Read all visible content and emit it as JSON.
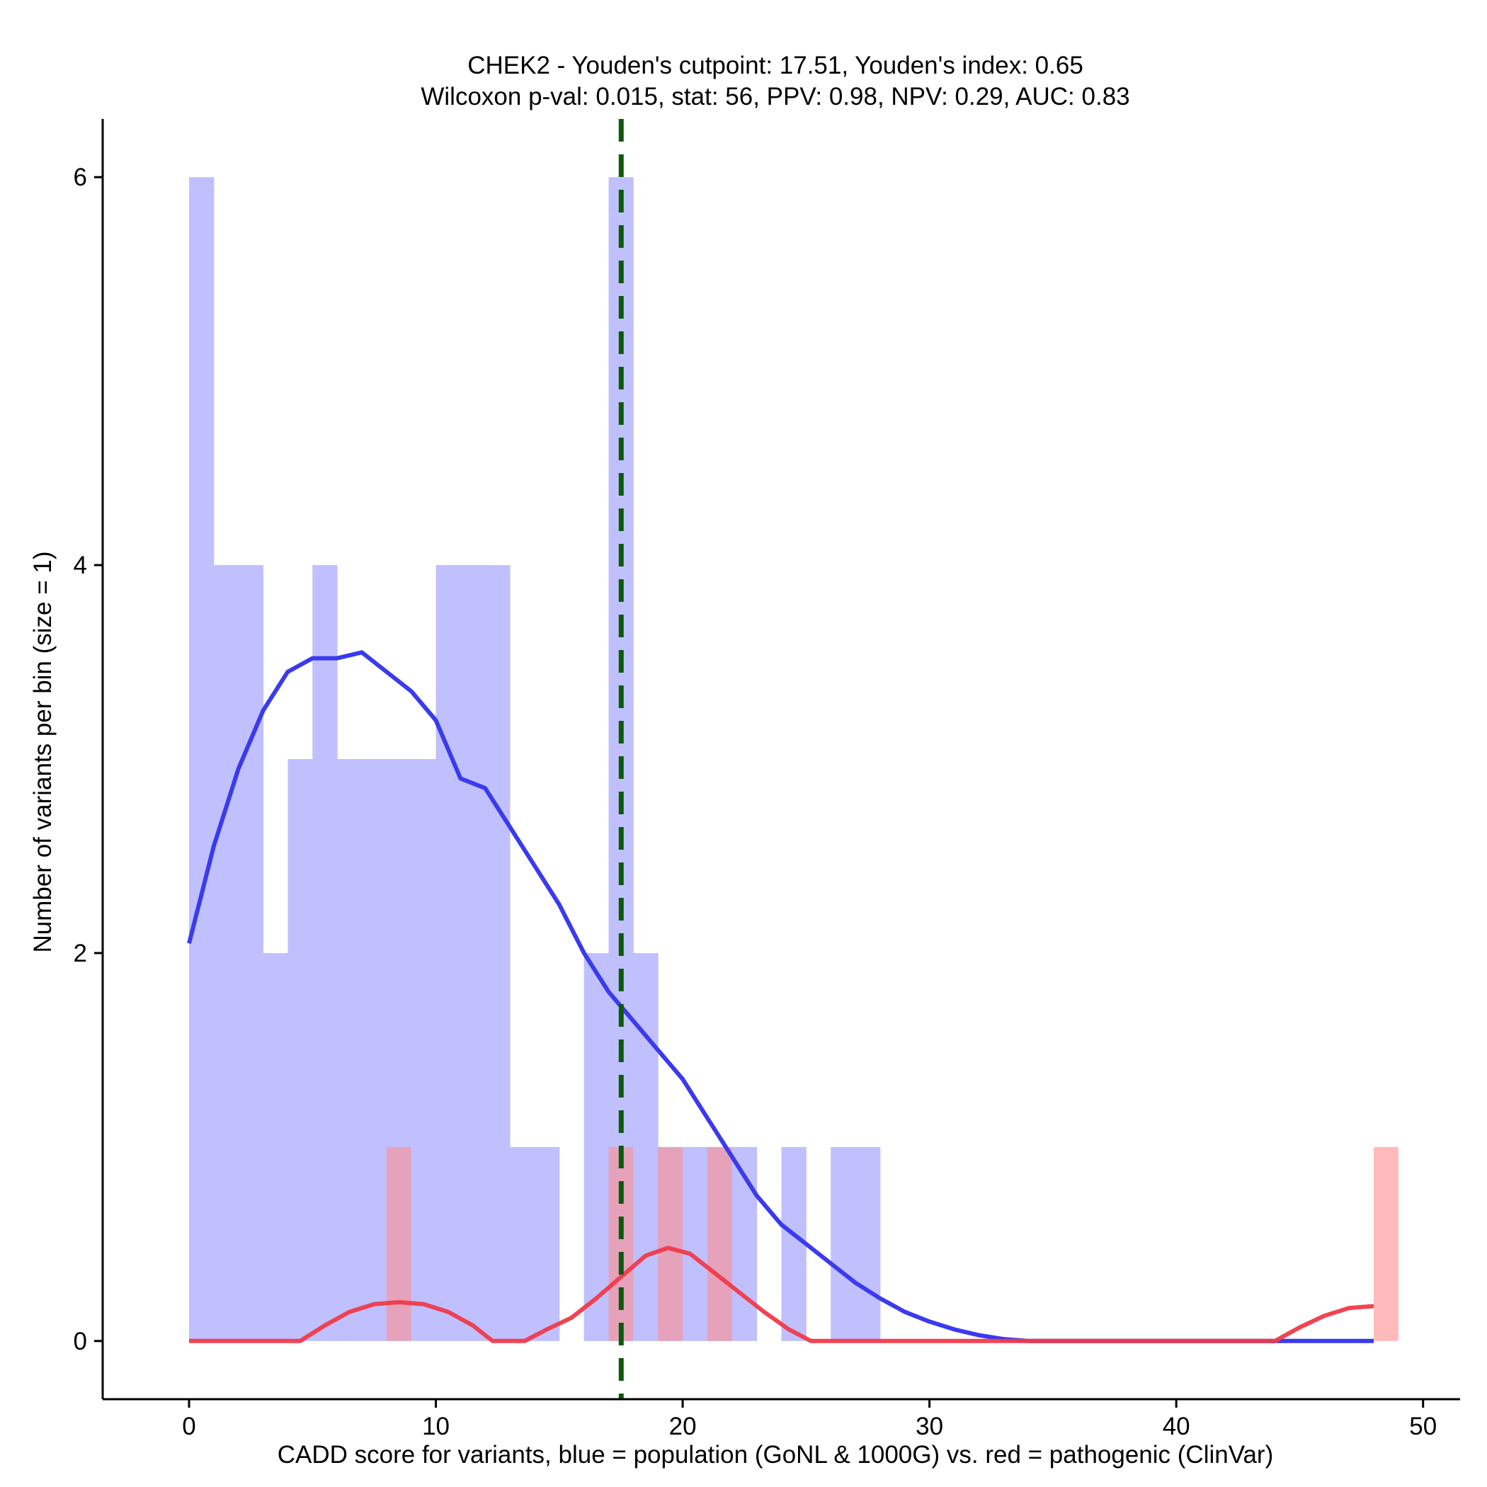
{
  "chart_data": {
    "type": "histogram",
    "title_line1": "CHEK2 - Youden's cutpoint: 17.51, Youden's index: 0.65",
    "title_line2": "Wilcoxon p-val: 0.015, stat: 56, PPV: 0.98, NPV: 0.29, AUC: 0.83",
    "xlabel": "CADD score for variants, blue = population (GoNL & 1000G) vs. red = pathogenic (ClinVar)",
    "ylabel": "Number of variants per bin (size = 1)",
    "xlim": [
      -3.5,
      51.5
    ],
    "ylim": [
      -0.3,
      6.3
    ],
    "xticks": [
      0,
      10,
      20,
      30,
      40,
      50
    ],
    "yticks": [
      0,
      2,
      4,
      6
    ],
    "bin_size": 1,
    "cutpoint": 17.51,
    "colors": {
      "population_bar": "#c0c0ff",
      "pathogenic_bar": "#ff8e8e",
      "population_line": "#3a3aef",
      "pathogenic_line": "#f03a4a",
      "cutpoint_line": "#0b5a0b",
      "axis": "#000000"
    },
    "series": [
      {
        "name": "population",
        "bins": [
          [
            0,
            6
          ],
          [
            1,
            4
          ],
          [
            2,
            4
          ],
          [
            3,
            2
          ],
          [
            4,
            3
          ],
          [
            5,
            4
          ],
          [
            6,
            3
          ],
          [
            7,
            3
          ],
          [
            8,
            3
          ],
          [
            9,
            3
          ],
          [
            10,
            4
          ],
          [
            11,
            4
          ],
          [
            12,
            4
          ],
          [
            13,
            1
          ],
          [
            14,
            1
          ],
          [
            16,
            2
          ],
          [
            17,
            6
          ],
          [
            18,
            2
          ],
          [
            19,
            1
          ],
          [
            20,
            1
          ],
          [
            21,
            1
          ],
          [
            22,
            1
          ],
          [
            24,
            1
          ],
          [
            26,
            1
          ],
          [
            27,
            1
          ]
        ],
        "density": [
          [
            0,
            2.05
          ],
          [
            1,
            2.55
          ],
          [
            2,
            2.95
          ],
          [
            3,
            3.25
          ],
          [
            4,
            3.45
          ],
          [
            5,
            3.52
          ],
          [
            6,
            3.52
          ],
          [
            7,
            3.55
          ],
          [
            8,
            3.45
          ],
          [
            9,
            3.35
          ],
          [
            10,
            3.2
          ],
          [
            11,
            2.9
          ],
          [
            12,
            2.85
          ],
          [
            13,
            2.65
          ],
          [
            14,
            2.45
          ],
          [
            15,
            2.25
          ],
          [
            16,
            2.0
          ],
          [
            17,
            1.8
          ],
          [
            18,
            1.65
          ],
          [
            19,
            1.5
          ],
          [
            20,
            1.35
          ],
          [
            21,
            1.15
          ],
          [
            22,
            0.95
          ],
          [
            23,
            0.75
          ],
          [
            24,
            0.6
          ],
          [
            25,
            0.5
          ],
          [
            26,
            0.4
          ],
          [
            27,
            0.3
          ],
          [
            28,
            0.22
          ],
          [
            29,
            0.15
          ],
          [
            30,
            0.1
          ],
          [
            31,
            0.06
          ],
          [
            32,
            0.03
          ],
          [
            33,
            0.01
          ],
          [
            34,
            0.0
          ],
          [
            48,
            0.0
          ]
        ]
      },
      {
        "name": "pathogenic",
        "bins": [
          [
            8,
            1
          ],
          [
            17,
            1
          ],
          [
            19,
            1
          ],
          [
            21,
            1
          ],
          [
            48,
            1
          ]
        ],
        "density": [
          [
            0,
            0.0
          ],
          [
            4.5,
            0.0
          ],
          [
            5.5,
            0.08
          ],
          [
            6.5,
            0.15
          ],
          [
            7.5,
            0.19
          ],
          [
            8.5,
            0.2
          ],
          [
            9.5,
            0.19
          ],
          [
            10.5,
            0.15
          ],
          [
            11.5,
            0.08
          ],
          [
            12.3,
            0.0
          ],
          [
            13.6,
            0.0
          ],
          [
            14.5,
            0.06
          ],
          [
            15.5,
            0.12
          ],
          [
            16.5,
            0.22
          ],
          [
            17.5,
            0.33
          ],
          [
            18.5,
            0.44
          ],
          [
            19.4,
            0.48
          ],
          [
            20.3,
            0.45
          ],
          [
            21.3,
            0.35
          ],
          [
            22.3,
            0.25
          ],
          [
            23.3,
            0.15
          ],
          [
            24.3,
            0.06
          ],
          [
            25.2,
            0.0
          ],
          [
            44.0,
            0.0
          ],
          [
            45.0,
            0.07
          ],
          [
            46.0,
            0.13
          ],
          [
            47.0,
            0.17
          ],
          [
            48.0,
            0.18
          ]
        ]
      }
    ]
  }
}
